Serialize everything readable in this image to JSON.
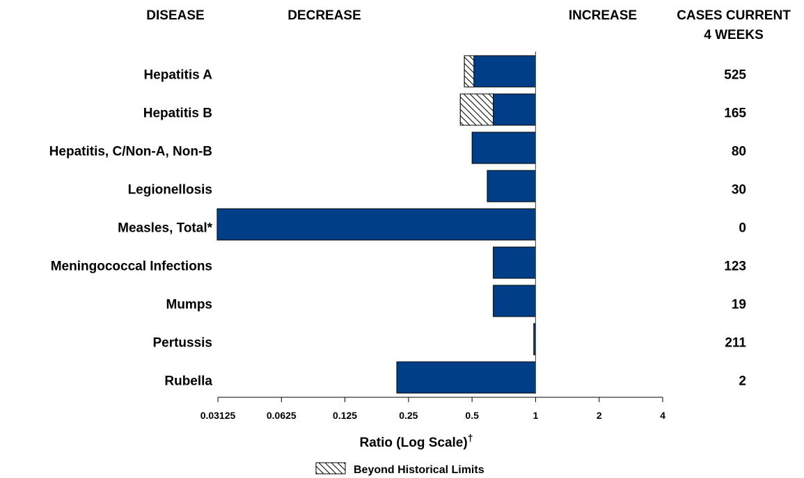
{
  "headers": {
    "disease": "DISEASE",
    "decrease": "DECREASE",
    "increase": "INCREASE",
    "cases_line1": "CASES CURRENT",
    "cases_line2": "4 WEEKS"
  },
  "axis_title": "Ratio (Log Scale)",
  "axis_title_mark": "†",
  "legend_label": "Beyond Historical Limits",
  "colors": {
    "bar": "#003f87",
    "bar_edge": "#000000",
    "hatch": "#000000"
  },
  "chart_data": {
    "type": "bar",
    "orientation": "horizontal",
    "x_scale": "log2",
    "xlim": [
      0.03125,
      4
    ],
    "xticks": [
      0.03125,
      0.0625,
      0.125,
      0.25,
      0.5,
      1,
      2,
      4
    ],
    "xtick_labels": [
      "0.03125",
      "0.0625",
      "0.125",
      "0.25",
      "0.5",
      "1",
      "2",
      "4"
    ],
    "baseline": 1,
    "categories": [
      "Hepatitis A",
      "Hepatitis B",
      "Hepatitis, C/Non-A, Non-B",
      "Legionellosis",
      "Measles, Total*",
      "Meningococcal Infections",
      "Mumps",
      "Pertussis",
      "Rubella"
    ],
    "values": [
      0.46,
      0.44,
      0.5,
      0.59,
      0.031,
      0.63,
      0.63,
      0.98,
      0.22
    ],
    "beyond_historical_limits_start": [
      0.51,
      0.63,
      null,
      null,
      null,
      null,
      null,
      null,
      null
    ],
    "cases_current_4_weeks": [
      "525",
      "165",
      "80",
      "30",
      "0",
      "123",
      "19",
      "211",
      "2"
    ]
  }
}
